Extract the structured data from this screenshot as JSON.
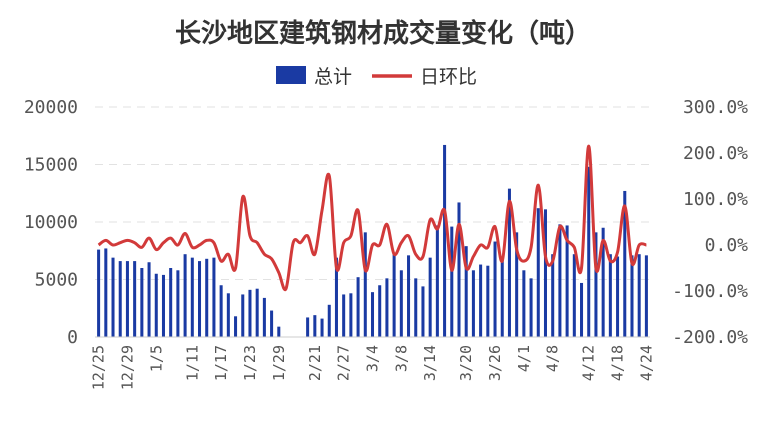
{
  "chart_data": {
    "type": "bar+line",
    "title": "长沙地区建筑钢材成交量变化（吨）",
    "legend": [
      "总计",
      "日环比"
    ],
    "legend_position": "top",
    "colors": {
      "bar": "#1a3aa3",
      "line": "#d23a3a",
      "grid": "#e2e2e2"
    },
    "y_left": {
      "ylim": [
        0,
        20000
      ],
      "ticks": [
        "0",
        "5000",
        "10000",
        "15000",
        "20000"
      ]
    },
    "y_right": {
      "ylim": [
        -200,
        300
      ],
      "ticks": [
        "-200.0%",
        "-100.0%",
        "0.0%",
        "100.0%",
        "200.0%",
        "300.0%"
      ]
    },
    "x_tick_labels": [
      "12/25",
      "12/29",
      "1/5",
      "1/11",
      "1/17",
      "1/23",
      "1/29",
      "2/21",
      "2/27",
      "3/4",
      "3/8",
      "3/14",
      "3/20",
      "3/26",
      "4/1",
      "4/8",
      "4/12",
      "4/18",
      "4/24"
    ],
    "bars": [
      7600,
      7700,
      6900,
      6600,
      6600,
      6600,
      6000,
      6500,
      5500,
      5400,
      6000,
      5800,
      7200,
      6900,
      6600,
      6800,
      6900,
      4500,
      3800,
      1800,
      3700,
      4100,
      4200,
      3400,
      2300,
      900,
      0,
      0,
      0,
      1700,
      1900,
      1600,
      2800,
      6900,
      3700,
      3800,
      5200,
      9100,
      3900,
      4500,
      5100,
      7200,
      5800,
      7100,
      5100,
      4400,
      6900,
      9700,
      16700,
      9600,
      11700,
      7900,
      5800,
      6300,
      6200,
      8300,
      6900,
      12900,
      9100,
      5800,
      5100,
      11200,
      11100,
      7200,
      9800,
      9700,
      7200,
      4700,
      14800,
      9100,
      9500,
      7200,
      7000,
      12700,
      7100,
      7200,
      7100
    ],
    "line": [
      0,
      10,
      0,
      5,
      10,
      5,
      -5,
      15,
      -10,
      5,
      15,
      0,
      25,
      -5,
      0,
      10,
      5,
      -35,
      -20,
      -50,
      105,
      20,
      5,
      -20,
      -30,
      -60,
      -95,
      5,
      5,
      20,
      -20,
      75,
      150,
      -50,
      5,
      20,
      75,
      -55,
      0,
      0,
      45,
      -20,
      5,
      20,
      -20,
      -25,
      55,
      35,
      75,
      -55,
      45,
      -50,
      -25,
      0,
      -5,
      40,
      -35,
      95,
      -10,
      -35,
      -5,
      130,
      -25,
      -35,
      40,
      10,
      -5,
      -50,
      215,
      -50,
      10,
      -35,
      -15,
      85,
      -40,
      0,
      0
    ]
  }
}
